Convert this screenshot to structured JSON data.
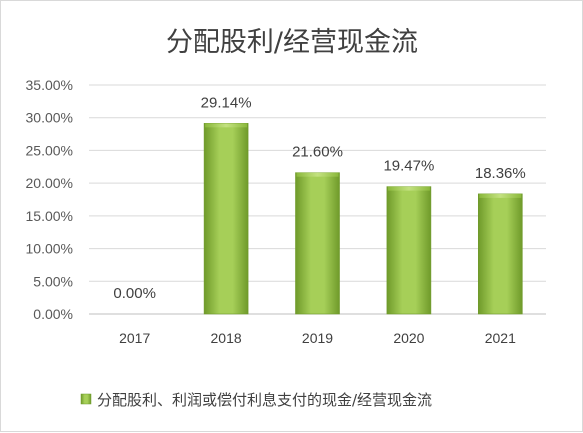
{
  "chart_data": {
    "type": "bar",
    "title": "分配股利/经营现金流",
    "categories": [
      "2017",
      "2018",
      "2019",
      "2020",
      "2021"
    ],
    "series": [
      {
        "name": "分配股利、利润或偿付利息支付的现金/经营现金流",
        "values": [
          0.0,
          29.14,
          21.6,
          19.47,
          18.36
        ]
      }
    ],
    "data_labels": [
      "0.00%",
      "29.14%",
      "21.60%",
      "19.47%",
      "18.36%"
    ],
    "ylim": [
      0,
      35
    ],
    "yticks": [
      0,
      5,
      10,
      15,
      20,
      25,
      30,
      35
    ],
    "ytick_labels": [
      "0.00%",
      "5.00%",
      "10.00%",
      "15.00%",
      "20.00%",
      "25.00%",
      "30.00%",
      "35.00%"
    ],
    "grid": true,
    "legend": "bottom",
    "colors": {
      "bar_light": "#a9d15b",
      "bar_mid": "#8dbb3d",
      "bar_dark": "#5e8a22",
      "grid": "#d9d9d9"
    }
  }
}
